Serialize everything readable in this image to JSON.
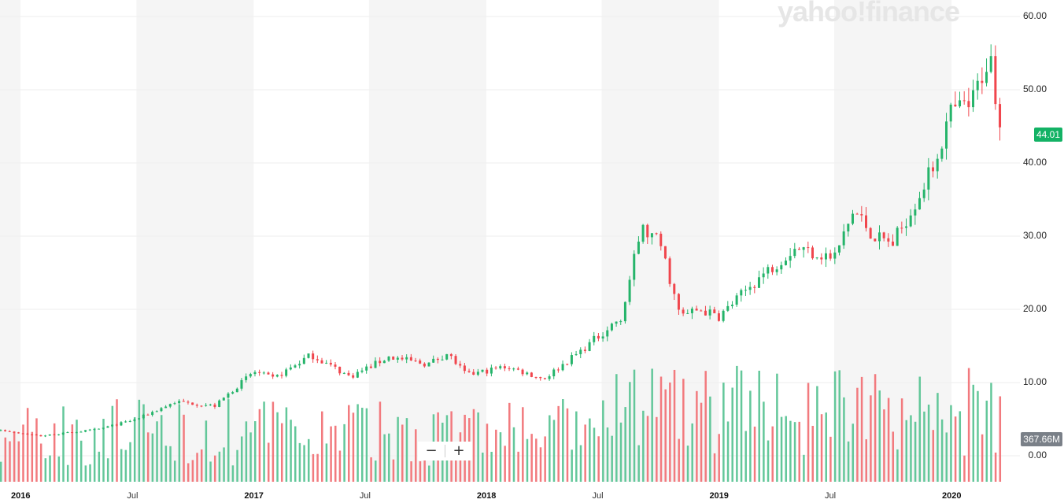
{
  "watermark": "yahoo!finance",
  "last_price_label": "44.01",
  "volume_label": "367.66M",
  "zoom": {
    "minus": "−",
    "plus": "+"
  },
  "colors": {
    "up": "#25b46a",
    "down": "#f0464d",
    "volume_up": "#63c79a",
    "volume_down": "#f27a7e",
    "band": "#f5f5f5",
    "grid": "#eeeeee",
    "price_badge": "#13b265",
    "volume_badge": "#7a8088"
  },
  "chart_data": {
    "type": "candlestick",
    "y_ticks": [
      "60.00",
      "50.00",
      "40.00",
      "30.00",
      "20.00",
      "10.00",
      "0.00"
    ],
    "y_range": [
      0,
      60
    ],
    "x_ticks": [
      {
        "label": "2016",
        "date": "2016-01",
        "year": true
      },
      {
        "label": "Jul",
        "date": "2016-07",
        "year": false
      },
      {
        "label": "2017",
        "date": "2017-01",
        "year": true
      },
      {
        "label": "Jul",
        "date": "2017-07",
        "year": false
      },
      {
        "label": "2018",
        "date": "2018-01",
        "year": true
      },
      {
        "label": "Jul",
        "date": "2018-07",
        "year": false
      },
      {
        "label": "2019",
        "date": "2019-01",
        "year": true
      },
      {
        "label": "Jul",
        "date": "2019-07",
        "year": false
      },
      {
        "label": "2020",
        "date": "2020-01",
        "year": true
      }
    ],
    "x_range": [
      "2015-09",
      "2020-05"
    ],
    "interval": "weekly",
    "price_path": [
      [
        "2015-09",
        3.2
      ],
      [
        "2015-12",
        3.5
      ],
      [
        "2016-02",
        2.7
      ],
      [
        "2016-05",
        3.6
      ],
      [
        "2016-07",
        5.0
      ],
      [
        "2016-09",
        7.4
      ],
      [
        "2016-11",
        6.8
      ],
      [
        "2017-01",
        11.5
      ],
      [
        "2017-02",
        10.5
      ],
      [
        "2017-04",
        13.8
      ],
      [
        "2017-06",
        10.8
      ],
      [
        "2017-08",
        13.5
      ],
      [
        "2017-10",
        12.5
      ],
      [
        "2017-11",
        14.0
      ],
      [
        "2017-12",
        11.0
      ],
      [
        "2018-02",
        12.2
      ],
      [
        "2018-04",
        10.5
      ],
      [
        "2018-06",
        14.5
      ],
      [
        "2018-08",
        19.0
      ],
      [
        "2018-09",
        31.0
      ],
      [
        "2018-10",
        29.0
      ],
      [
        "2018-11",
        19.0
      ],
      [
        "2018-12",
        20.0
      ],
      [
        "2019-01",
        19.0
      ],
      [
        "2019-03",
        24.0
      ],
      [
        "2019-05",
        28.5
      ],
      [
        "2019-07",
        27.0
      ],
      [
        "2019-08",
        33.5
      ],
      [
        "2019-09",
        30.0
      ],
      [
        "2019-10",
        29.0
      ],
      [
        "2019-11",
        34.0
      ],
      [
        "2019-12",
        39.0
      ],
      [
        "2020-01",
        47.0
      ],
      [
        "2020-02",
        48.0
      ],
      [
        "2020-03",
        55.0
      ],
      [
        "2020-03-20",
        44.01
      ]
    ],
    "volume_range_max_millions": 1200,
    "last_close": 44.01,
    "last_volume": "367.66M",
    "grid": true
  }
}
